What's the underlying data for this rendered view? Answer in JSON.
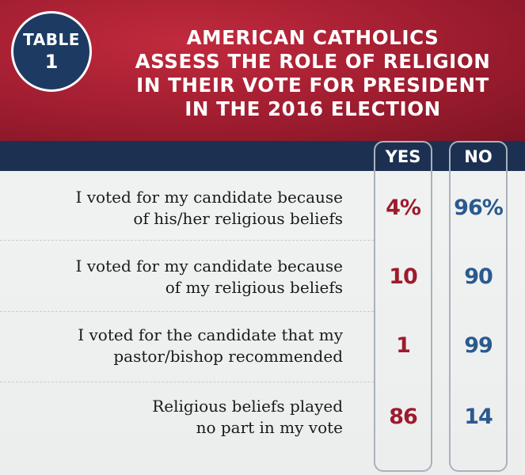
{
  "badge": {
    "word": "TABLE",
    "number": "1"
  },
  "title_lines": [
    "AMERICAN CATHOLICS",
    "ASSESS THE ROLE OF RELIGION",
    "IN THEIR VOTE FOR PRESIDENT",
    "IN THE 2016 ELECTION"
  ],
  "columns": {
    "yes": "YES",
    "no": "NO"
  },
  "rows": [
    {
      "label_lines": [
        "I voted for my candidate because",
        "of his/her religious beliefs"
      ],
      "yes": "4%",
      "no": "96%"
    },
    {
      "label_lines": [
        "I voted for my candidate because",
        "of my religious beliefs"
      ],
      "yes": "10",
      "no": "90"
    },
    {
      "label_lines": [
        "I voted for the candidate that my",
        "pastor/bishop recommended"
      ],
      "yes": "1",
      "no": "99"
    },
    {
      "label_lines": [
        "Religious beliefs played",
        "no part in my vote"
      ],
      "yes": "86",
      "no": "14"
    }
  ],
  "colors": {
    "header_red": "#a01d30",
    "navy": "#1c3152",
    "yes_color": "#9e1b2c",
    "no_color": "#2a5a8e"
  },
  "chart_data": {
    "type": "table",
    "title": "AMERICAN CATHOLICS ASSESS THE ROLE OF RELIGION IN THEIR VOTE FOR PRESIDENT IN THE 2016 ELECTION",
    "columns": [
      "YES",
      "NO"
    ],
    "categories": [
      "I voted for my candidate because of his/her religious beliefs",
      "I voted for my candidate because of my religious beliefs",
      "I voted for the candidate that my pastor/bishop recommended",
      "Religious beliefs played no part in my vote"
    ],
    "series": [
      {
        "name": "YES",
        "values": [
          4,
          10,
          1,
          86
        ]
      },
      {
        "name": "NO",
        "values": [
          96,
          90,
          99,
          14
        ]
      }
    ],
    "unit": "%"
  }
}
